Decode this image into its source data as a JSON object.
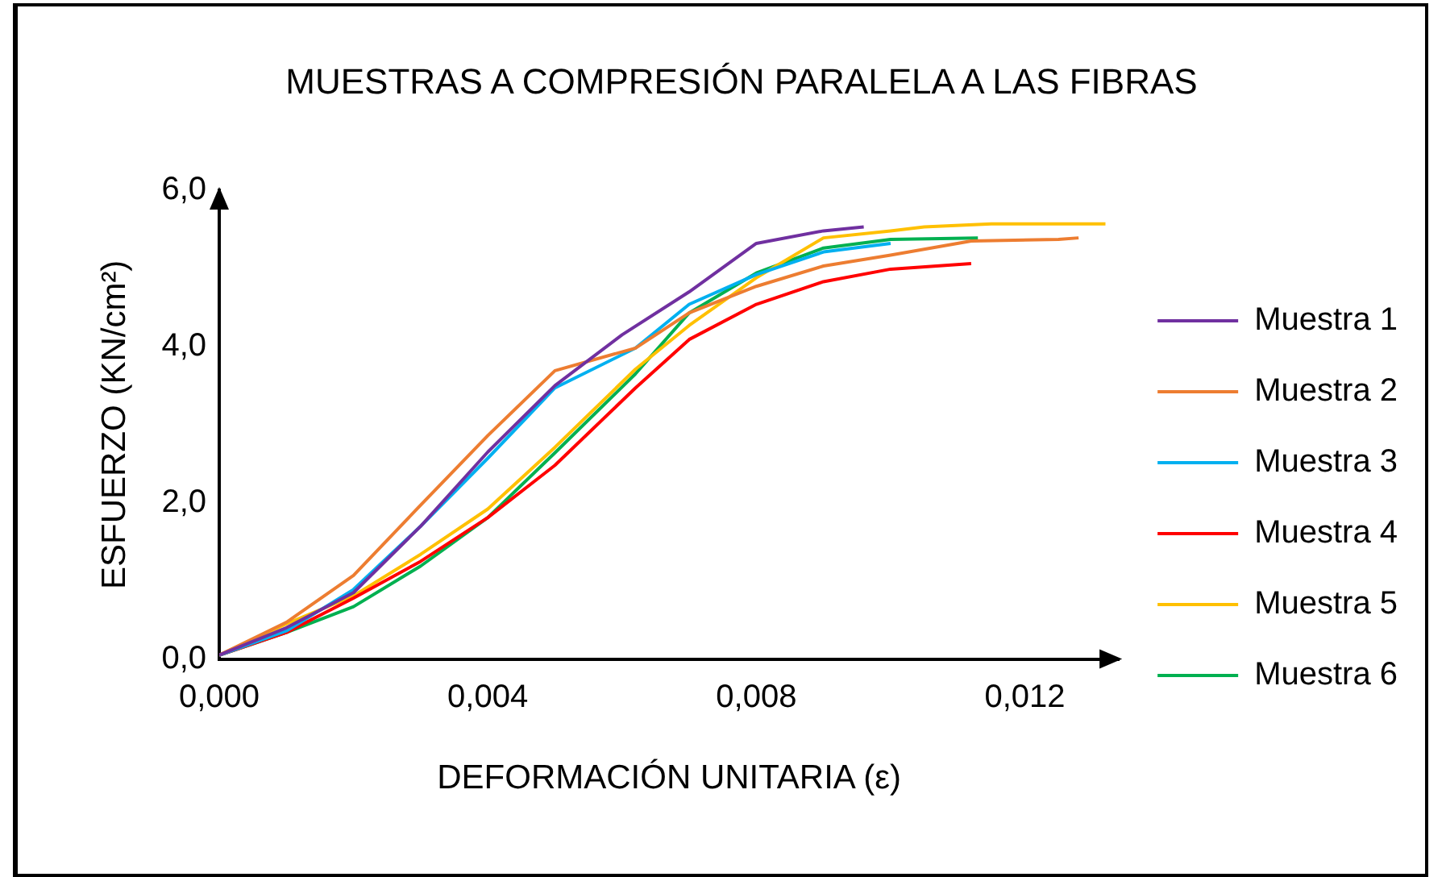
{
  "chart_data": {
    "type": "line",
    "title": "MUESTRAS A COMPRESIÓN PARALELA A LAS FIBRAS",
    "xlabel": "DEFORMACIÓN UNITARIA (ε)",
    "ylabel": "ESFUERZO (KN/cm²)",
    "xlim": [
      0,
      0.0134
    ],
    "ylim": [
      0,
      6
    ],
    "xticks": [
      {
        "value": 0,
        "label": "0,000"
      },
      {
        "value": 0.004,
        "label": "0,004"
      },
      {
        "value": 0.008,
        "label": "0,008"
      },
      {
        "value": 0.012,
        "label": "0,012"
      }
    ],
    "yticks": [
      {
        "value": 0,
        "label": "0,0"
      },
      {
        "value": 2,
        "label": "2,0"
      },
      {
        "value": 4,
        "label": "4,0"
      },
      {
        "value": 6,
        "label": "6,0"
      }
    ],
    "grid": false,
    "legend": "right",
    "marker": "none",
    "line_style": "solid",
    "series": [
      {
        "name": "Muestra 1",
        "color": "#7030a0",
        "x": [
          0,
          0.001,
          0.002,
          0.003,
          0.004,
          0.005,
          0.006,
          0.007,
          0.008,
          0.009,
          0.0096
        ],
        "values": [
          0.05,
          0.4,
          0.85,
          1.7,
          2.65,
          3.5,
          4.15,
          4.7,
          5.32,
          5.48,
          5.53
        ]
      },
      {
        "name": "Muestra 2",
        "color": "#ed7d31",
        "x": [
          0,
          0.001,
          0.002,
          0.003,
          0.004,
          0.005,
          0.0062,
          0.007,
          0.008,
          0.009,
          0.01,
          0.0112,
          0.0125,
          0.0128
        ],
        "values": [
          0.05,
          0.47,
          1.07,
          1.97,
          2.86,
          3.69,
          3.98,
          4.43,
          4.77,
          5.03,
          5.17,
          5.35,
          5.37,
          5.39
        ]
      },
      {
        "name": "Muestra 3",
        "color": "#00b0f0",
        "x": [
          0,
          0.001,
          0.002,
          0.003,
          0.004,
          0.005,
          0.0062,
          0.007,
          0.008,
          0.009,
          0.01
        ],
        "values": [
          0.05,
          0.36,
          0.89,
          1.7,
          2.57,
          3.47,
          3.98,
          4.54,
          4.92,
          5.21,
          5.32
        ]
      },
      {
        "name": "Muestra 4",
        "color": "#ff0000",
        "x": [
          0,
          0.001,
          0.002,
          0.003,
          0.004,
          0.005,
          0.0062,
          0.007,
          0.008,
          0.009,
          0.01,
          0.0112
        ],
        "values": [
          0.05,
          0.34,
          0.78,
          1.25,
          1.81,
          2.48,
          3.47,
          4.09,
          4.54,
          4.83,
          4.99,
          5.06
        ]
      },
      {
        "name": "Muestra 5",
        "color": "#ffc000",
        "x": [
          0,
          0.001,
          0.002,
          0.003,
          0.004,
          0.005,
          0.0062,
          0.007,
          0.008,
          0.009,
          0.01,
          0.0105,
          0.0115,
          0.0132
        ],
        "values": [
          0.05,
          0.45,
          0.81,
          1.34,
          1.92,
          2.71,
          3.71,
          4.27,
          4.88,
          5.39,
          5.48,
          5.53,
          5.57,
          5.57
        ]
      },
      {
        "name": "Muestra 6",
        "color": "#00b050",
        "x": [
          0,
          0.001,
          0.002,
          0.003,
          0.004,
          0.005,
          0.0062,
          0.007,
          0.008,
          0.009,
          0.01,
          0.0113
        ],
        "values": [
          0.05,
          0.34,
          0.67,
          1.19,
          1.81,
          2.64,
          3.65,
          4.43,
          4.94,
          5.26,
          5.37,
          5.39
        ]
      }
    ]
  }
}
